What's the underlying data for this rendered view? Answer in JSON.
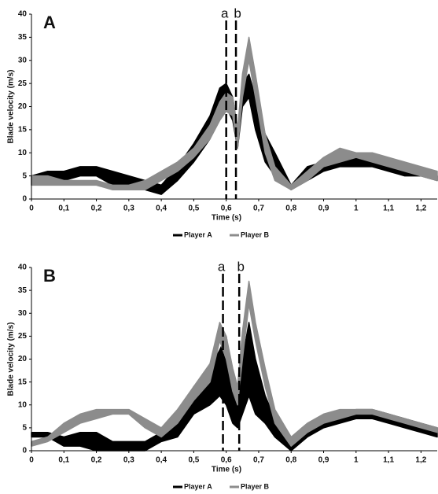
{
  "chart_data": [
    {
      "type": "band",
      "panel_label": "A",
      "ylabel": "Blade velocity (m/s)",
      "xlabel": "Time (s)",
      "xlim": [
        0,
        1.25
      ],
      "ylim": [
        0,
        40
      ],
      "xticks": [
        0,
        {
          "value": 0.1,
          "label": "0,1"
        },
        {
          "value": 0.2,
          "label": "0,2"
        },
        {
          "value": 0.3,
          "label": "0,3"
        },
        {
          "value": 0.4,
          "label": "0,4"
        },
        {
          "value": 0.5,
          "label": "0,5"
        },
        {
          "value": 0.6,
          "label": "0,6"
        },
        {
          "value": 0.7,
          "label": "0,7"
        },
        {
          "value": 0.8,
          "label": "0,8"
        },
        {
          "value": 0.9,
          "label": "0,9"
        },
        1,
        {
          "value": 1.1,
          "label": "1,1"
        },
        {
          "value": 1.2,
          "label": "1,2"
        }
      ],
      "yticks": [
        0,
        5,
        10,
        15,
        20,
        25,
        30,
        35,
        40
      ],
      "x": [
        0,
        0.05,
        0.1,
        0.15,
        0.2,
        0.25,
        0.3,
        0.35,
        0.4,
        0.45,
        0.5,
        0.55,
        0.58,
        0.6,
        0.62,
        0.635,
        0.65,
        0.67,
        0.69,
        0.72,
        0.75,
        0.8,
        0.85,
        0.9,
        0.95,
        1,
        1.05,
        1.1,
        1.15,
        1.2,
        1.25
      ],
      "series": [
        {
          "name": "Player A",
          "color": "#000000",
          "lower": [
            3,
            4,
            4,
            5,
            5,
            3,
            3,
            2,
            1,
            4,
            8,
            13,
            19,
            20,
            17,
            11,
            20,
            22,
            15,
            8,
            5,
            2,
            4,
            6,
            7,
            7,
            7,
            6,
            5,
            5,
            4
          ],
          "upper": [
            5,
            6,
            6,
            7,
            7,
            6,
            5,
            4,
            3,
            7,
            12,
            18,
            24,
            25,
            22,
            15,
            25,
            27,
            22,
            14,
            10,
            3,
            7,
            8,
            9,
            9,
            9,
            8,
            7,
            6,
            5
          ]
        },
        {
          "name": "Player B",
          "color": "#8c8c8c",
          "lower": [
            3,
            3,
            3,
            3,
            3,
            2,
            2,
            2,
            4,
            6,
            9,
            13,
            17,
            19,
            18,
            11,
            22,
            30,
            22,
            10,
            4,
            2,
            4,
            7,
            8,
            9,
            8,
            7,
            6,
            5,
            4
          ],
          "upper": [
            5,
            5,
            4,
            4,
            4,
            3,
            3,
            4,
            6,
            8,
            11,
            16,
            21,
            23,
            22,
            15,
            27,
            35,
            27,
            14,
            7,
            3,
            6,
            9,
            11,
            10,
            10,
            9,
            8,
            7,
            6
          ]
        }
      ],
      "markers": [
        {
          "label": "a",
          "x": 0.6
        },
        {
          "label": "b",
          "x": 0.63
        }
      ]
    },
    {
      "type": "band",
      "panel_label": "B",
      "ylabel": "Blade velocity (m/s)",
      "xlabel": "Time (s)",
      "xlim": [
        0,
        1.25
      ],
      "ylim": [
        0,
        40
      ],
      "xticks": [
        0,
        {
          "value": 0.1,
          "label": "0,1"
        },
        {
          "value": 0.2,
          "label": "0,2"
        },
        {
          "value": 0.3,
          "label": "0,3"
        },
        {
          "value": 0.4,
          "label": "0,4"
        },
        {
          "value": 0.5,
          "label": "0,5"
        },
        {
          "value": 0.6,
          "label": "0,6"
        },
        {
          "value": 0.7,
          "label": "0,7"
        },
        {
          "value": 0.8,
          "label": "0,8"
        },
        {
          "value": 0.9,
          "label": "0,9"
        },
        1,
        {
          "value": 1.1,
          "label": "1,1"
        },
        {
          "value": 1.2,
          "label": "1,2"
        }
      ],
      "yticks": [
        0,
        5,
        10,
        15,
        20,
        25,
        30,
        35,
        40
      ],
      "x": [
        0,
        0.05,
        0.1,
        0.15,
        0.2,
        0.25,
        0.3,
        0.35,
        0.4,
        0.45,
        0.5,
        0.55,
        0.58,
        0.6,
        0.62,
        0.635,
        0.65,
        0.67,
        0.69,
        0.72,
        0.75,
        0.8,
        0.85,
        0.9,
        0.95,
        1,
        1.05,
        1.1,
        1.15,
        1.2,
        1.25
      ],
      "series": [
        {
          "name": "Player A",
          "color": "#000000",
          "lower": [
            3,
            3,
            1,
            1,
            0,
            0,
            0,
            0,
            2,
            3,
            8,
            10,
            12,
            10,
            6,
            5,
            8,
            12,
            8,
            6,
            3,
            0,
            3,
            5,
            6,
            7,
            7,
            6,
            5,
            4,
            3
          ],
          "upper": [
            4,
            4,
            3,
            4,
            4,
            2,
            2,
            2,
            4,
            8,
            14,
            18,
            22,
            25,
            16,
            10,
            20,
            28,
            20,
            12,
            7,
            2,
            5,
            7,
            8,
            9,
            9,
            8,
            7,
            6,
            5
          ]
        },
        {
          "name": "Player B",
          "color": "#8c8c8c",
          "lower": [
            1,
            2,
            4,
            6,
            7,
            8,
            8,
            5,
            3,
            6,
            11,
            15,
            24,
            20,
            13,
            10,
            20,
            32,
            24,
            14,
            6,
            1,
            4,
            6,
            7,
            8,
            8,
            7,
            6,
            5,
            4
          ],
          "upper": [
            2,
            3,
            6,
            8,
            9,
            9,
            9,
            7,
            5,
            9,
            14,
            19,
            28,
            25,
            18,
            14,
            26,
            37,
            28,
            18,
            9,
            3,
            6,
            8,
            9,
            9,
            9,
            8,
            7,
            6,
            5
          ]
        }
      ],
      "markers": [
        {
          "label": "a",
          "x": 0.59
        },
        {
          "label": "b",
          "x": 0.64
        }
      ]
    }
  ]
}
